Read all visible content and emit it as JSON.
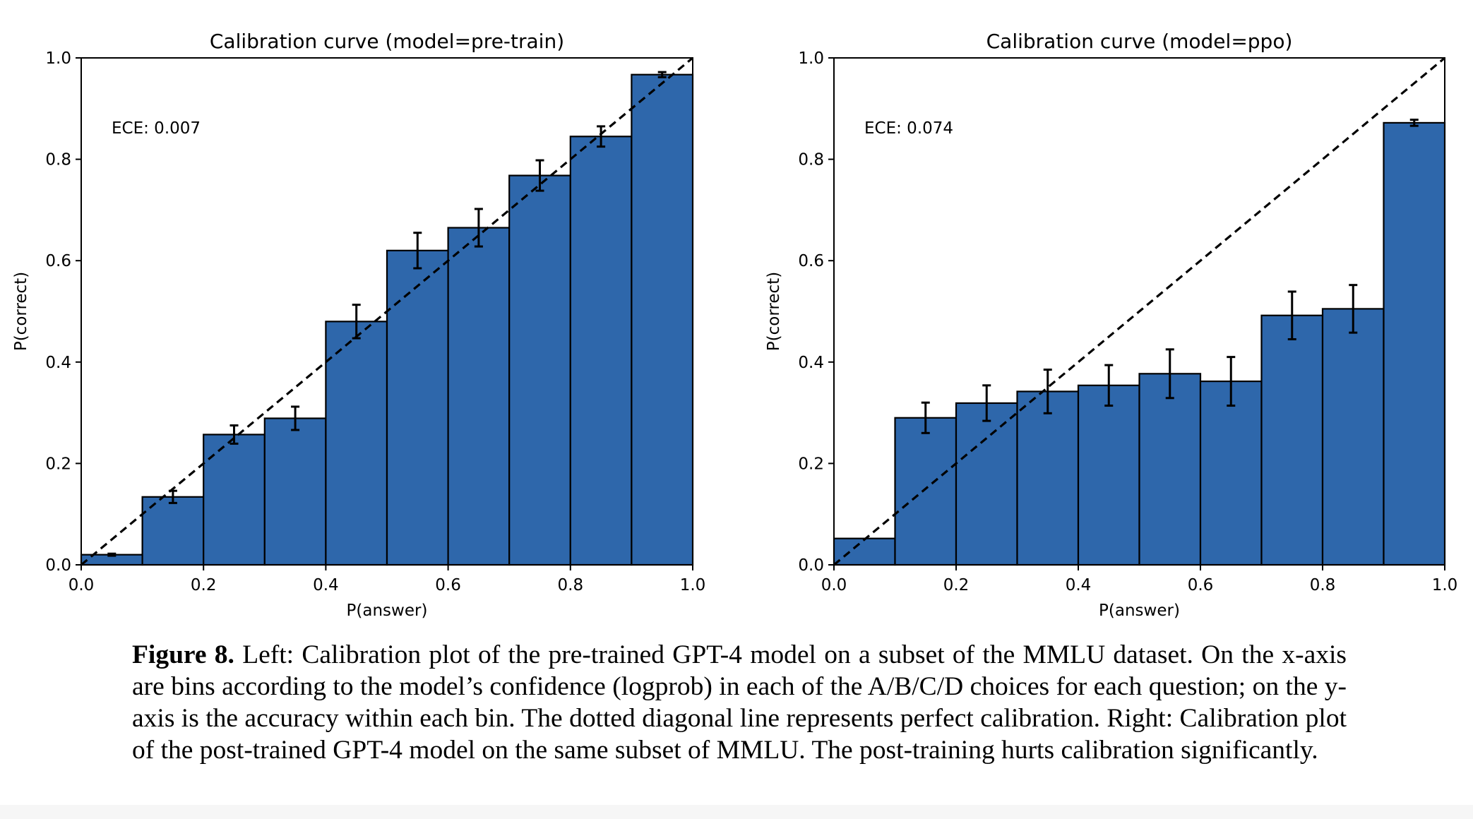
{
  "chart_data": [
    {
      "type": "bar",
      "title": "Calibration curve (model=pre-train)",
      "xlabel": "P(answer)",
      "ylabel": "P(correct)",
      "xlim": [
        0,
        1
      ],
      "ylim": [
        0,
        1
      ],
      "xticks": [
        "0.0",
        "0.2",
        "0.4",
        "0.6",
        "0.8",
        "1.0"
      ],
      "yticks": [
        "0.0",
        "0.2",
        "0.4",
        "0.6",
        "0.8",
        "1.0"
      ],
      "annotation": "ECE: 0.007",
      "bar_color": "#2e67ab",
      "bins": [
        {
          "x0": 0.0,
          "x1": 0.1,
          "value": 0.02,
          "err": 0.002
        },
        {
          "x0": 0.1,
          "x1": 0.2,
          "value": 0.134,
          "err": 0.012
        },
        {
          "x0": 0.2,
          "x1": 0.3,
          "value": 0.257,
          "err": 0.018
        },
        {
          "x0": 0.3,
          "x1": 0.4,
          "value": 0.289,
          "err": 0.023
        },
        {
          "x0": 0.4,
          "x1": 0.5,
          "value": 0.48,
          "err": 0.033
        },
        {
          "x0": 0.5,
          "x1": 0.6,
          "value": 0.62,
          "err": 0.035
        },
        {
          "x0": 0.6,
          "x1": 0.7,
          "value": 0.665,
          "err": 0.037
        },
        {
          "x0": 0.7,
          "x1": 0.8,
          "value": 0.768,
          "err": 0.03
        },
        {
          "x0": 0.8,
          "x1": 0.9,
          "value": 0.845,
          "err": 0.02
        },
        {
          "x0": 0.9,
          "x1": 1.0,
          "value": 0.967,
          "err": 0.005
        }
      ],
      "diagonal": {
        "style": "dashed",
        "from": [
          0,
          0
        ],
        "to": [
          1,
          1
        ]
      }
    },
    {
      "type": "bar",
      "title": "Calibration curve (model=ppo)",
      "xlabel": "P(answer)",
      "ylabel": "P(correct)",
      "xlim": [
        0,
        1
      ],
      "ylim": [
        0,
        1
      ],
      "xticks": [
        "0.0",
        "0.2",
        "0.4",
        "0.6",
        "0.8",
        "1.0"
      ],
      "yticks": [
        "0.0",
        "0.2",
        "0.4",
        "0.6",
        "0.8",
        "1.0"
      ],
      "annotation": "ECE: 0.074",
      "bar_color": "#2e67ab",
      "bins": [
        {
          "x0": 0.0,
          "x1": 0.1,
          "value": 0.052,
          "err": 0.0
        },
        {
          "x0": 0.1,
          "x1": 0.2,
          "value": 0.29,
          "err": 0.03
        },
        {
          "x0": 0.2,
          "x1": 0.3,
          "value": 0.319,
          "err": 0.035
        },
        {
          "x0": 0.3,
          "x1": 0.4,
          "value": 0.342,
          "err": 0.043
        },
        {
          "x0": 0.4,
          "x1": 0.5,
          "value": 0.354,
          "err": 0.04
        },
        {
          "x0": 0.5,
          "x1": 0.6,
          "value": 0.377,
          "err": 0.048
        },
        {
          "x0": 0.6,
          "x1": 0.7,
          "value": 0.362,
          "err": 0.048
        },
        {
          "x0": 0.7,
          "x1": 0.8,
          "value": 0.492,
          "err": 0.047
        },
        {
          "x0": 0.8,
          "x1": 0.9,
          "value": 0.505,
          "err": 0.047
        },
        {
          "x0": 0.9,
          "x1": 1.0,
          "value": 0.872,
          "err": 0.006
        }
      ],
      "diagonal": {
        "style": "dashed",
        "from": [
          0,
          0
        ],
        "to": [
          1,
          1
        ]
      }
    }
  ],
  "caption": {
    "label": "Figure 8.",
    "text": "Left: Calibration plot of the pre-trained GPT-4 model on a subset of the MMLU dataset. On the x-axis are bins according to the model’s confidence (logprob) in each of the A/B/C/D choices for each question; on the y-axis is the accuracy within each bin. The dotted diagonal line represents perfect calibration. Right: Calibration plot of the post-trained GPT-4 model on the same subset of MMLU. The post-training hurts calibration significantly."
  }
}
